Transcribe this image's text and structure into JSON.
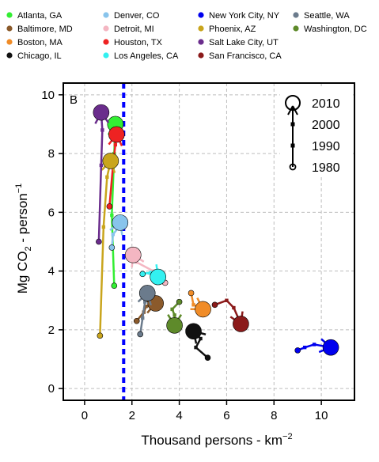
{
  "chart_data": {
    "type": "line",
    "panel_label": "B",
    "xlabel": "Thousand persons - km",
    "xlabel_sup": "−2",
    "ylabel": "Mg CO",
    "ylabel_sub": "2",
    "ylabel_tail": " - person",
    "ylabel_sup": "−1",
    "xlim": [
      -0.9,
      11.4
    ],
    "ylim": [
      -0.4,
      10.4
    ],
    "xticks": [
      0,
      2,
      4,
      6,
      8,
      10
    ],
    "yticks": [
      0,
      2,
      4,
      6,
      8,
      10
    ],
    "grid": true,
    "legend_location": "top, outside plot, 4 columns",
    "years": [
      "1980",
      "1990",
      "2000",
      "2010"
    ],
    "year_key": [
      "2010",
      "2000",
      "1990",
      "1980"
    ],
    "vertical_reference_line": {
      "x": 1.65,
      "color": "#0000ff",
      "style": "dashed"
    },
    "series": [
      {
        "name": "Atlanta, GA",
        "color": "#33ee33",
        "x": [
          1.25,
          1.15,
          1.25,
          1.3
        ],
        "y": [
          3.5,
          5.9,
          8.0,
          9.0
        ]
      },
      {
        "name": "Baltimore, MD",
        "color": "#8b5a2b",
        "x": [
          2.2,
          2.5,
          2.6,
          3.0
        ],
        "y": [
          2.3,
          2.6,
          2.8,
          2.9
        ]
      },
      {
        "name": "Boston, MA",
        "color": "#f08c28",
        "x": [
          4.5,
          4.6,
          4.9,
          5.0
        ],
        "y": [
          3.25,
          2.85,
          2.75,
          2.7
        ]
      },
      {
        "name": "Chicago, IL",
        "color": "#111111",
        "x": [
          5.2,
          4.7,
          4.9,
          4.6
        ],
        "y": [
          1.05,
          1.4,
          1.7,
          1.95
        ]
      },
      {
        "name": "Denver, CO",
        "color": "#88c4ec",
        "x": [
          1.15,
          1.2,
          1.4,
          1.5
        ],
        "y": [
          4.8,
          5.25,
          5.45,
          5.65
        ]
      },
      {
        "name": "Detroit, MI",
        "color": "#f4b6c2",
        "x": [
          3.4,
          2.9,
          2.2,
          2.05
        ],
        "y": [
          3.6,
          4.0,
          4.3,
          4.55
        ]
      },
      {
        "name": "Houston, TX",
        "color": "#ee2222",
        "x": [
          1.05,
          1.2,
          1.3,
          1.35
        ],
        "y": [
          6.2,
          7.6,
          8.3,
          8.65
        ]
      },
      {
        "name": "Los Angeles, CA",
        "color": "#33f0f0",
        "x": [
          2.45,
          2.8,
          3.0,
          3.1
        ],
        "y": [
          3.9,
          3.95,
          3.9,
          3.8
        ]
      },
      {
        "name": "New York City, NY",
        "color": "#0000ee",
        "x": [
          9.0,
          9.3,
          9.7,
          10.4
        ],
        "y": [
          1.3,
          1.4,
          1.5,
          1.4
        ]
      },
      {
        "name": "Phoenix, AZ",
        "color": "#c9a51d",
        "x": [
          0.65,
          0.8,
          0.95,
          1.1
        ],
        "y": [
          1.8,
          5.5,
          7.2,
          7.75
        ]
      },
      {
        "name": "Salt Lake City, UT",
        "color": "#6a2c8c",
        "x": [
          0.6,
          0.7,
          0.75,
          0.7
        ],
        "y": [
          5.0,
          7.6,
          8.8,
          9.4
        ]
      },
      {
        "name": "San Francisco, CA",
        "color": "#8b1a1a",
        "x": [
          5.5,
          6.0,
          6.3,
          6.6
        ],
        "y": [
          2.85,
          3.0,
          2.75,
          2.2
        ]
      },
      {
        "name": "Seattle, WA",
        "color": "#6b7b8c",
        "x": [
          2.35,
          2.45,
          2.55,
          2.65
        ],
        "y": [
          1.85,
          2.4,
          2.95,
          3.25
        ]
      },
      {
        "name": "Washington, DC",
        "color": "#5e8a2a",
        "x": [
          4.0,
          3.7,
          3.8,
          3.8
        ],
        "y": [
          2.95,
          2.7,
          2.5,
          2.15
        ]
      }
    ]
  }
}
